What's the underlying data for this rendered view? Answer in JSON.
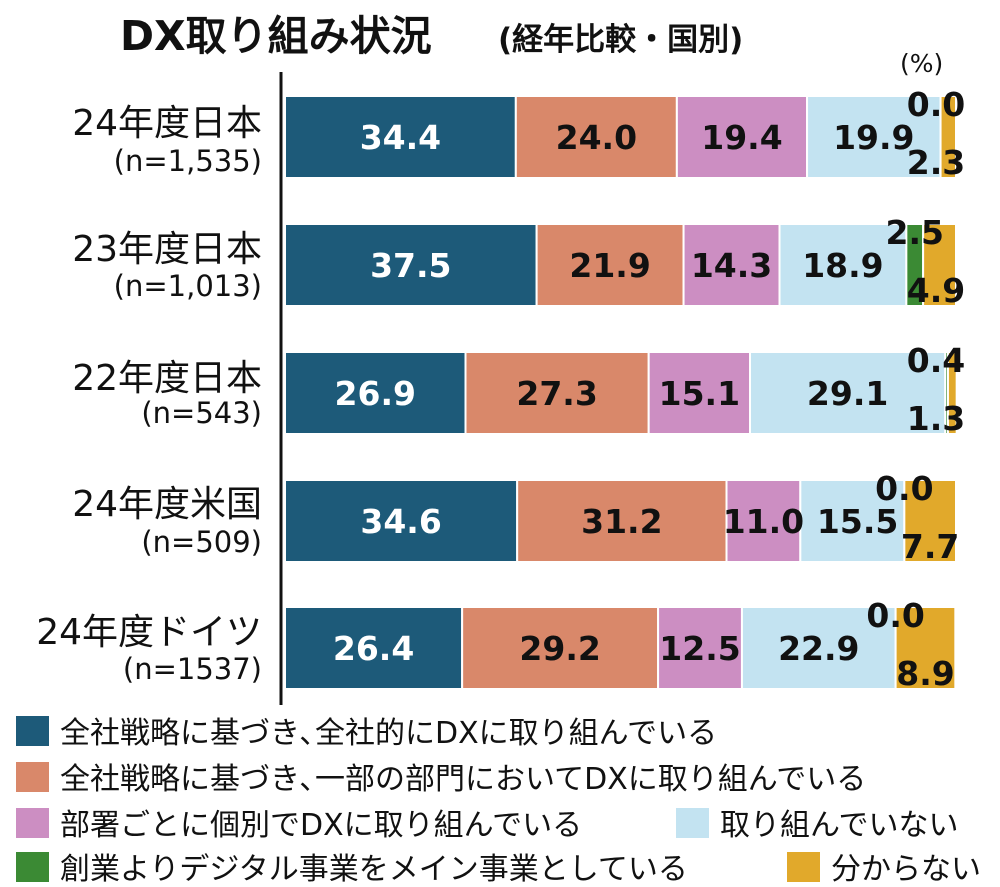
{
  "chart_data": {
    "type": "bar",
    "orientation": "horizontal",
    "stacked": true,
    "title": "DX取り組み状況",
    "subtitle": "(経年比較・国別)",
    "unit": "(%)",
    "categories": [
      {
        "name": "24年度日本",
        "n": "(n=1,535)"
      },
      {
        "name": "23年度日本",
        "n": "(n=1,013)"
      },
      {
        "name": "22年度日本",
        "n": "(n=543)"
      },
      {
        "name": "24年度米国",
        "n": "(n=509)"
      },
      {
        "name": "24年度ドイツ",
        "n": "(n=1537)"
      }
    ],
    "series": [
      {
        "name": "全社戦略に基づき､全社的にDXに取り組んでいる",
        "color": "#1d5a79",
        "label_color": "#ffffff",
        "values": [
          34.4,
          37.5,
          26.9,
          34.6,
          26.4
        ]
      },
      {
        "name": "全社戦略に基づき､一部の部門においてDXに取り組んでいる",
        "color": "#d9886a",
        "label_color": "#111111",
        "values": [
          24.0,
          21.9,
          27.3,
          31.2,
          29.2
        ]
      },
      {
        "name": "部署ごとに個別でDXに取り組んでいる",
        "color": "#cc8ec2",
        "label_color": "#111111",
        "values": [
          19.4,
          14.3,
          15.1,
          11.0,
          12.5
        ]
      },
      {
        "name": "取り組んでいない",
        "color": "#c3e3f1",
        "label_color": "#111111",
        "values": [
          19.9,
          18.9,
          29.1,
          15.5,
          22.9
        ]
      },
      {
        "name": "創業よりデジタル事業をメイン事業としている",
        "color": "#3b8a34",
        "label_color": "#111111",
        "values": [
          0.0,
          2.5,
          0.4,
          0.0,
          0.0
        ]
      },
      {
        "name": "分からない",
        "color": "#e1a92b",
        "label_color": "#111111",
        "values": [
          2.3,
          4.9,
          1.3,
          7.7,
          8.9
        ]
      }
    ],
    "xlim": [
      0,
      100
    ],
    "grid": false,
    "legend_position": "bottom"
  }
}
